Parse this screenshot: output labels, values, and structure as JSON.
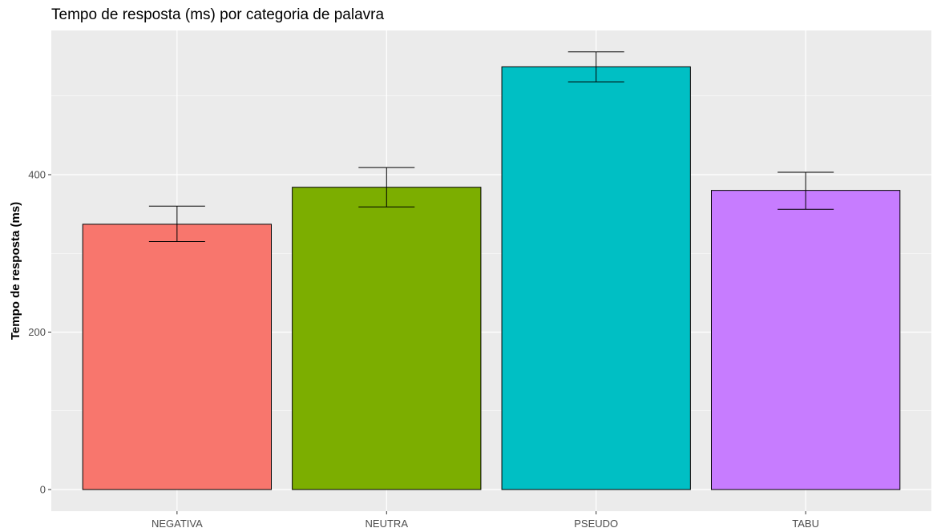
{
  "chart_data": {
    "type": "bar",
    "title": "Tempo de resposta (ms) por categoria de palavra",
    "xlabel": "",
    "ylabel": "Tempo de resposta (ms)",
    "categories": [
      "NEGATIVA",
      "NEUTRA",
      "PSEUDO",
      "TABU"
    ],
    "values": [
      337,
      384,
      537,
      380
    ],
    "error_low": [
      315,
      359,
      518,
      356
    ],
    "error_high": [
      360,
      409,
      556,
      403
    ],
    "colors": [
      "#F8766D",
      "#7CAE00",
      "#00BFC4",
      "#C77CFF"
    ],
    "ylim": [
      0,
      580
    ],
    "yticks": [
      0,
      200,
      400
    ],
    "grid": true,
    "panel_background": "#EBEBEB",
    "legend": "none"
  }
}
